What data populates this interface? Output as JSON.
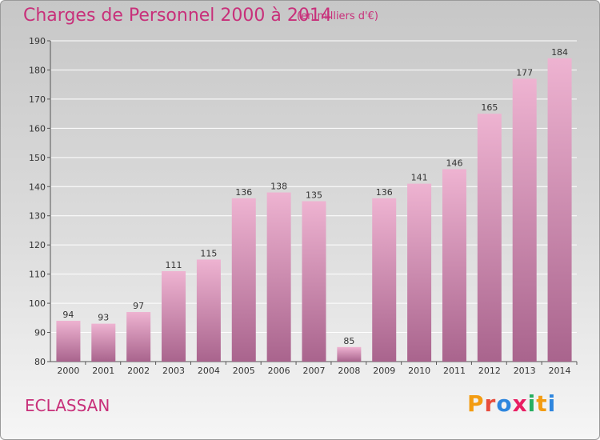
{
  "header": {
    "title": "Charges de Personnel 2000 à 2014",
    "subtitle": "(en milliers d'€)"
  },
  "footer": {
    "city": "ECLASSAN",
    "brand_letters": [
      "P",
      "r",
      "o",
      "x",
      "i",
      "t",
      "i"
    ],
    "brand_colors": [
      "#f39c12",
      "#e74c3c",
      "#2e86de",
      "#e91e63",
      "#27ae60",
      "#f39c12",
      "#2e86de"
    ]
  },
  "colors": {
    "bar_light": "#eeb3d1",
    "bar_dark": "#a9648d",
    "axis_text": "#333333",
    "gridline": "#ffffff"
  },
  "chart_data": {
    "type": "bar",
    "categories": [
      "2000",
      "2001",
      "2002",
      "2003",
      "2004",
      "2005",
      "2006",
      "2007",
      "2008",
      "2009",
      "2010",
      "2011",
      "2012",
      "2013",
      "2014"
    ],
    "values": [
      94,
      93,
      97,
      111,
      115,
      136,
      138,
      135,
      85,
      136,
      141,
      146,
      165,
      177,
      184
    ],
    "title": "Charges de Personnel 2000 à 2014",
    "ylim": [
      80,
      190
    ],
    "yticks": [
      80,
      90,
      100,
      110,
      120,
      130,
      140,
      150,
      160,
      170,
      180,
      190
    ],
    "grid": true,
    "legend": "none"
  }
}
